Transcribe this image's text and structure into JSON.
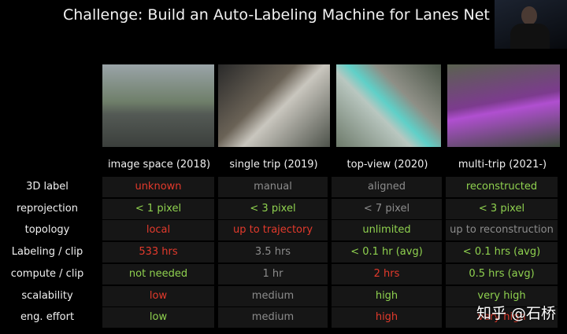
{
  "title": "Challenge: Build an Auto-Labeling Machine for Lanes Net",
  "table": {
    "columns": [
      "image space (2018)",
      "single trip (2019)",
      "top-view (2020)",
      "multi-trip (2021-)"
    ],
    "rows": [
      {
        "label": "3D label",
        "cells": [
          {
            "text": "unknown",
            "color": "#e33a2c"
          },
          {
            "text": "manual",
            "color": "#8c8c8c"
          },
          {
            "text": "aligned",
            "color": "#8c8c8c"
          },
          {
            "text": "reconstructed",
            "color": "#8fd14f"
          }
        ]
      },
      {
        "label": "reprojection",
        "cells": [
          {
            "text": "< 1 pixel",
            "color": "#8fd14f"
          },
          {
            "text": "< 3 pixel",
            "color": "#8fd14f"
          },
          {
            "text": "< 7 pixel",
            "color": "#8c8c8c"
          },
          {
            "text": "< 3 pixel",
            "color": "#8fd14f"
          }
        ]
      },
      {
        "label": "topology",
        "cells": [
          {
            "text": "local",
            "color": "#e33a2c"
          },
          {
            "text": "up to trajectory",
            "color": "#e33a2c"
          },
          {
            "text": "unlimited",
            "color": "#8fd14f"
          },
          {
            "text": "up to reconstruction",
            "color": "#8c8c8c"
          }
        ]
      },
      {
        "label": "Labeling / clip",
        "cells": [
          {
            "text": "533 hrs",
            "color": "#e33a2c"
          },
          {
            "text": "3.5 hrs",
            "color": "#8c8c8c"
          },
          {
            "text": "< 0.1 hr (avg)",
            "color": "#8fd14f"
          },
          {
            "text": "< 0.1 hrs (avg)",
            "color": "#8fd14f"
          }
        ]
      },
      {
        "label": "compute / clip",
        "cells": [
          {
            "text": "not needed",
            "color": "#8fd14f"
          },
          {
            "text": "1 hr",
            "color": "#8c8c8c"
          },
          {
            "text": "2 hrs",
            "color": "#e33a2c"
          },
          {
            "text": "0.5 hrs (avg)",
            "color": "#8fd14f"
          }
        ]
      },
      {
        "label": "scalability",
        "cells": [
          {
            "text": "low",
            "color": "#e33a2c"
          },
          {
            "text": "medium",
            "color": "#8c8c8c"
          },
          {
            "text": "high",
            "color": "#8fd14f"
          },
          {
            "text": "very high",
            "color": "#8fd14f"
          }
        ]
      },
      {
        "label": "eng. effort",
        "cells": [
          {
            "text": "low",
            "color": "#8fd14f"
          },
          {
            "text": "medium",
            "color": "#8c8c8c"
          },
          {
            "text": "high",
            "color": "#e33a2c"
          },
          {
            "text": "very high",
            "color": "#e33a2c"
          }
        ]
      }
    ]
  },
  "watermark": "知乎 @石桥"
}
